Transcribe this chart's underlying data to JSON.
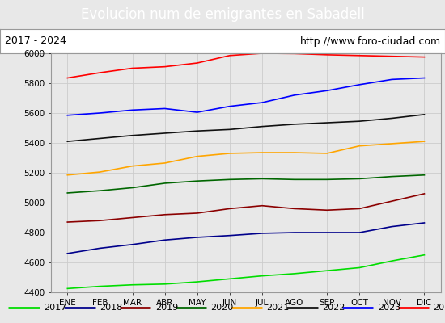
{
  "title": "Evolucion num de emigrantes en Sabadell",
  "title_bg": "#4a7fc1",
  "subtitle_left": "2017 - 2024",
  "subtitle_right": "http://www.foro-ciudad.com",
  "x_labels": [
    "ENE",
    "FEB",
    "MAR",
    "ABR",
    "MAY",
    "JUN",
    "JUL",
    "AGO",
    "SEP",
    "OCT",
    "NOV",
    "DIC"
  ],
  "ylim": [
    4400,
    6000
  ],
  "yticks": [
    4400,
    4600,
    4800,
    5000,
    5200,
    5400,
    5600,
    5800,
    6000
  ],
  "series": {
    "2017": {
      "color": "#00dd00",
      "data": [
        4425,
        4440,
        4450,
        4455,
        4470,
        4490,
        4510,
        4525,
        4545,
        4565,
        4610,
        4650
      ]
    },
    "2018": {
      "color": "#00008b",
      "data": [
        4660,
        4695,
        4720,
        4750,
        4768,
        4780,
        4795,
        4800,
        4800,
        4800,
        4840,
        4865
      ]
    },
    "2019": {
      "color": "#8b0000",
      "data": [
        4870,
        4880,
        4900,
        4920,
        4930,
        4960,
        4980,
        4960,
        4950,
        4960,
        5010,
        5060
      ]
    },
    "2020": {
      "color": "#006600",
      "data": [
        5065,
        5080,
        5100,
        5130,
        5145,
        5155,
        5160,
        5155,
        5155,
        5160,
        5175,
        5185
      ]
    },
    "2021": {
      "color": "#ffa500",
      "data": [
        5185,
        5205,
        5245,
        5265,
        5310,
        5330,
        5335,
        5335,
        5330,
        5380,
        5395,
        5410
      ]
    },
    "2022": {
      "color": "#111111",
      "data": [
        5410,
        5430,
        5450,
        5465,
        5480,
        5490,
        5510,
        5525,
        5535,
        5545,
        5565,
        5590
      ]
    },
    "2023": {
      "color": "#0000ff",
      "data": [
        5585,
        5600,
        5620,
        5630,
        5605,
        5645,
        5670,
        5720,
        5750,
        5790,
        5825,
        5835
      ]
    },
    "2024": {
      "color": "#ff0000",
      "data": [
        5835,
        5870,
        5900,
        5910,
        5935,
        5985,
        6000,
        5998,
        5990,
        5985,
        5980,
        5975
      ]
    }
  },
  "bg_color": "#e8e8e8",
  "plot_bg": "#e8e8e8",
  "grid_color": "#cccccc",
  "title_fontsize": 12,
  "tick_fontsize": 7.5,
  "legend_fontsize": 8
}
